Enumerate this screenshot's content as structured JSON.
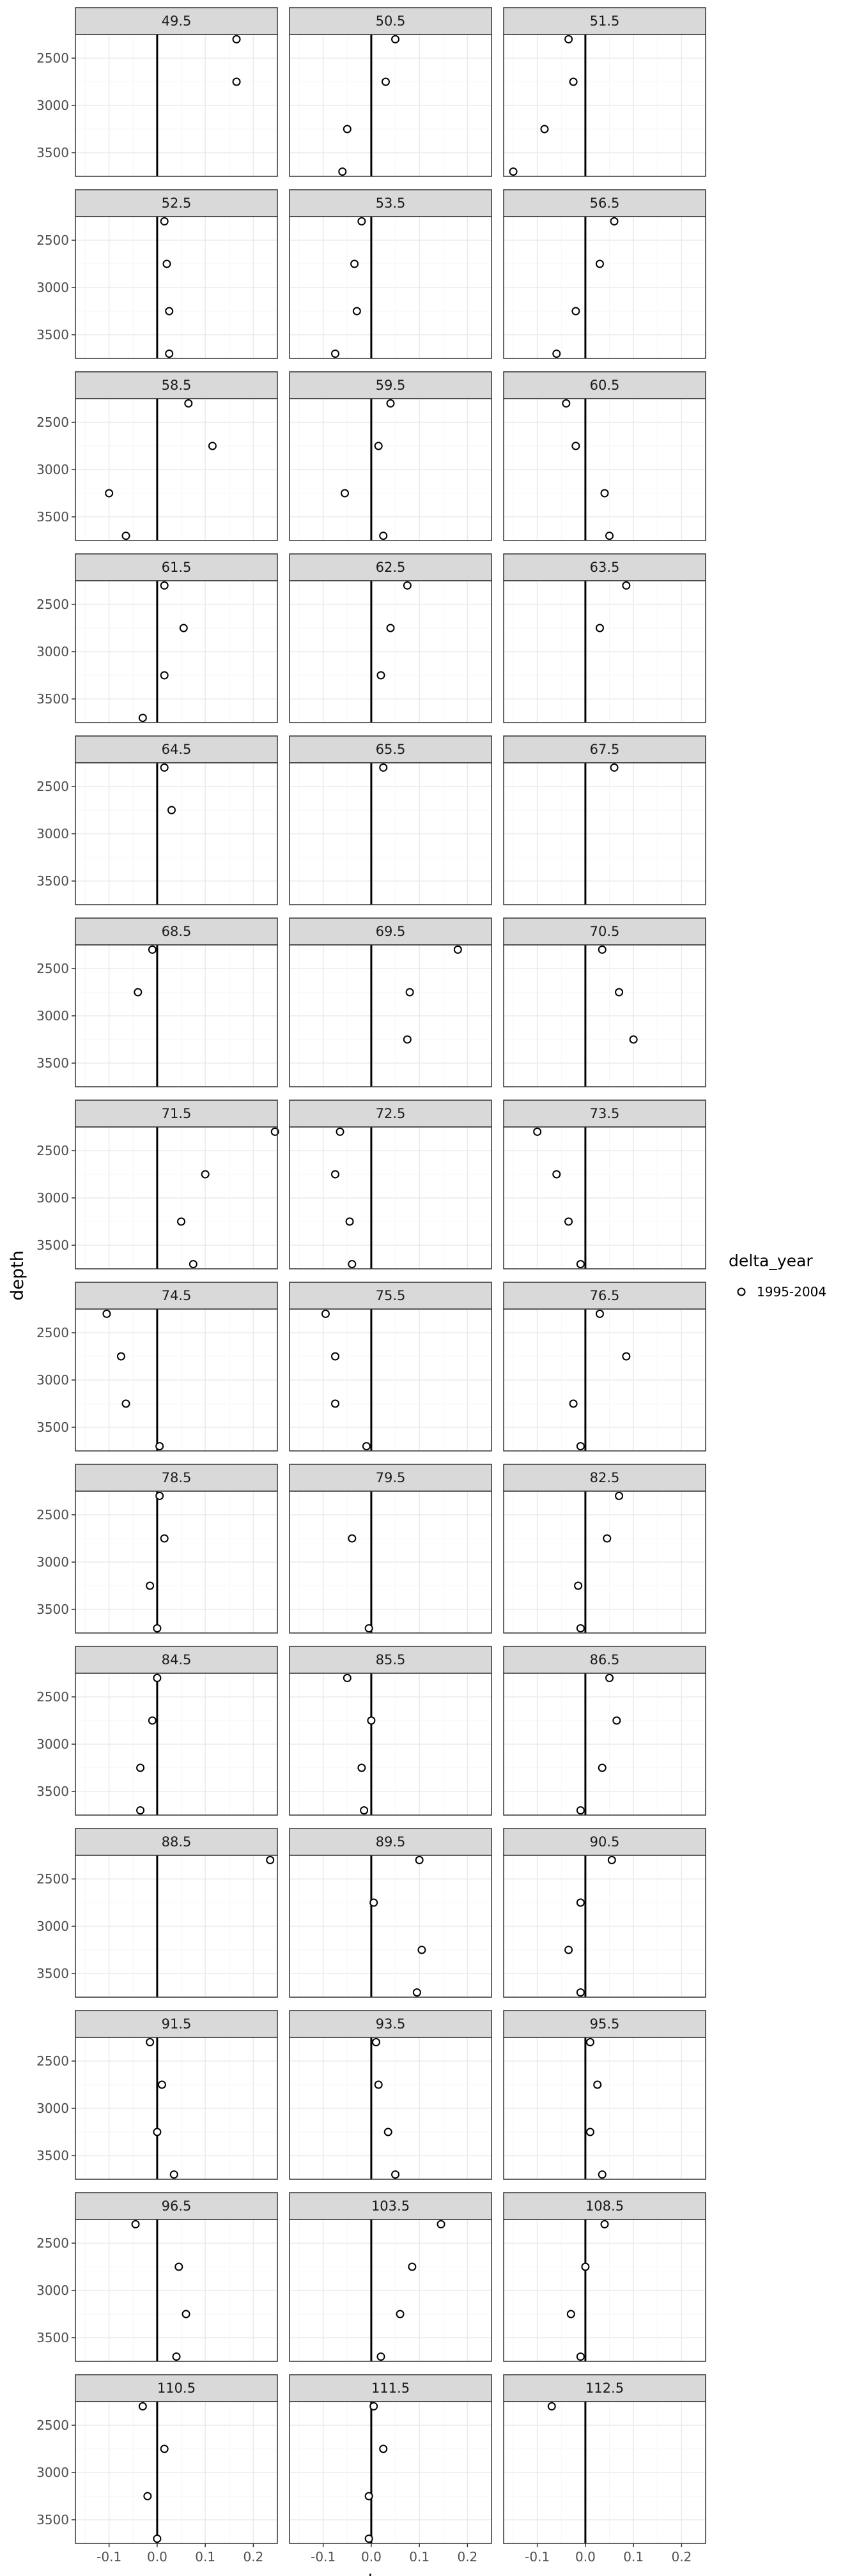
{
  "chart_data": {
    "type": "scatter",
    "xlabel": "temp",
    "ylabel": "depth",
    "xlim": [
      -0.17,
      0.25
    ],
    "ylim": [
      2250,
      3750
    ],
    "y_reversed": true,
    "x_ticks": [
      -0.1,
      0.0,
      0.1,
      0.2
    ],
    "x_tick_labels": [
      "-0.1",
      "0.0",
      "0.1",
      "0.2"
    ],
    "y_ticks": [
      2500,
      3000,
      3500
    ],
    "y_tick_labels": [
      "2500",
      "3000",
      "3500"
    ],
    "grid": true,
    "zero_reference_line": 0,
    "legend": {
      "title": "delta_year",
      "entries": [
        "1995-2004"
      ],
      "position": "right"
    },
    "facets": [
      {
        "label": "49.5",
        "points": [
          [
            0.165,
            2300
          ],
          [
            0.165,
            2750
          ]
        ]
      },
      {
        "label": "50.5",
        "points": [
          [
            0.05,
            2300
          ],
          [
            0.03,
            2750
          ],
          [
            -0.05,
            3250
          ],
          [
            -0.06,
            3700
          ]
        ]
      },
      {
        "label": "51.5",
        "points": [
          [
            -0.035,
            2300
          ],
          [
            -0.025,
            2750
          ],
          [
            -0.085,
            3250
          ],
          [
            -0.15,
            3700
          ]
        ]
      },
      {
        "label": "52.5",
        "points": [
          [
            0.015,
            2300
          ],
          [
            0.02,
            2750
          ],
          [
            0.025,
            3250
          ],
          [
            0.025,
            3700
          ]
        ]
      },
      {
        "label": "53.5",
        "points": [
          [
            -0.02,
            2300
          ],
          [
            -0.035,
            2750
          ],
          [
            -0.03,
            3250
          ],
          [
            -0.075,
            3700
          ]
        ]
      },
      {
        "label": "56.5",
        "points": [
          [
            0.06,
            2300
          ],
          [
            0.03,
            2750
          ],
          [
            -0.02,
            3250
          ],
          [
            -0.06,
            3700
          ]
        ]
      },
      {
        "label": "58.5",
        "points": [
          [
            0.065,
            2300
          ],
          [
            0.115,
            2750
          ],
          [
            -0.1,
            3250
          ],
          [
            -0.065,
            3700
          ]
        ]
      },
      {
        "label": "59.5",
        "points": [
          [
            0.04,
            2300
          ],
          [
            0.015,
            2750
          ],
          [
            -0.055,
            3250
          ],
          [
            0.025,
            3700
          ]
        ]
      },
      {
        "label": "60.5",
        "points": [
          [
            -0.04,
            2300
          ],
          [
            -0.02,
            2750
          ],
          [
            0.04,
            3250
          ],
          [
            0.05,
            3700
          ]
        ]
      },
      {
        "label": "61.5",
        "points": [
          [
            0.015,
            2300
          ],
          [
            0.055,
            2750
          ],
          [
            0.015,
            3250
          ],
          [
            -0.03,
            3700
          ]
        ]
      },
      {
        "label": "62.5",
        "points": [
          [
            0.075,
            2300
          ],
          [
            0.04,
            2750
          ],
          [
            0.02,
            3250
          ]
        ]
      },
      {
        "label": "63.5",
        "points": [
          [
            0.085,
            2300
          ],
          [
            0.03,
            2750
          ]
        ]
      },
      {
        "label": "64.5",
        "points": [
          [
            0.015,
            2300
          ],
          [
            0.03,
            2750
          ]
        ]
      },
      {
        "label": "65.5",
        "points": [
          [
            0.025,
            2300
          ]
        ]
      },
      {
        "label": "67.5",
        "points": [
          [
            0.06,
            2300
          ]
        ]
      },
      {
        "label": "68.5",
        "points": [
          [
            -0.01,
            2300
          ],
          [
            -0.04,
            2750
          ]
        ]
      },
      {
        "label": "69.5",
        "points": [
          [
            0.18,
            2300
          ],
          [
            0.08,
            2750
          ],
          [
            0.075,
            3250
          ]
        ]
      },
      {
        "label": "70.5",
        "points": [
          [
            0.035,
            2300
          ],
          [
            0.07,
            2750
          ],
          [
            0.1,
            3250
          ]
        ]
      },
      {
        "label": "71.5",
        "points": [
          [
            0.245,
            2300
          ],
          [
            0.1,
            2750
          ],
          [
            0.05,
            3250
          ],
          [
            0.075,
            3700
          ]
        ]
      },
      {
        "label": "72.5",
        "points": [
          [
            -0.065,
            2300
          ],
          [
            -0.075,
            2750
          ],
          [
            -0.045,
            3250
          ],
          [
            -0.04,
            3700
          ]
        ]
      },
      {
        "label": "73.5",
        "points": [
          [
            -0.1,
            2300
          ],
          [
            -0.06,
            2750
          ],
          [
            -0.035,
            3250
          ],
          [
            -0.01,
            3700
          ]
        ]
      },
      {
        "label": "74.5",
        "points": [
          [
            -0.105,
            2300
          ],
          [
            -0.075,
            2750
          ],
          [
            -0.065,
            3250
          ],
          [
            0.005,
            3700
          ]
        ]
      },
      {
        "label": "75.5",
        "points": [
          [
            -0.095,
            2300
          ],
          [
            -0.075,
            2750
          ],
          [
            -0.075,
            3250
          ],
          [
            -0.01,
            3700
          ]
        ]
      },
      {
        "label": "76.5",
        "points": [
          [
            0.03,
            2300
          ],
          [
            0.085,
            2750
          ],
          [
            -0.025,
            3250
          ],
          [
            -0.01,
            3700
          ]
        ]
      },
      {
        "label": "78.5",
        "points": [
          [
            0.005,
            2300
          ],
          [
            0.015,
            2750
          ],
          [
            -0.015,
            3250
          ],
          [
            0.0,
            3700
          ]
        ]
      },
      {
        "label": "79.5",
        "points": [
          [
            -0.04,
            2750
          ],
          [
            -0.005,
            3700
          ]
        ]
      },
      {
        "label": "82.5",
        "points": [
          [
            0.07,
            2300
          ],
          [
            0.045,
            2750
          ],
          [
            -0.015,
            3250
          ],
          [
            -0.01,
            3700
          ]
        ]
      },
      {
        "label": "84.5",
        "points": [
          [
            0.0,
            2300
          ],
          [
            -0.01,
            2750
          ],
          [
            -0.035,
            3250
          ],
          [
            -0.035,
            3700
          ]
        ]
      },
      {
        "label": "85.5",
        "points": [
          [
            -0.05,
            2300
          ],
          [
            0.0,
            2750
          ],
          [
            -0.02,
            3250
          ],
          [
            -0.015,
            3700
          ]
        ]
      },
      {
        "label": "86.5",
        "points": [
          [
            0.05,
            2300
          ],
          [
            0.065,
            2750
          ],
          [
            0.035,
            3250
          ],
          [
            -0.01,
            3700
          ]
        ]
      },
      {
        "label": "88.5",
        "points": [
          [
            0.235,
            2300
          ]
        ]
      },
      {
        "label": "89.5",
        "points": [
          [
            0.1,
            2300
          ],
          [
            0.005,
            2750
          ],
          [
            0.105,
            3250
          ],
          [
            0.095,
            3700
          ]
        ]
      },
      {
        "label": "90.5",
        "points": [
          [
            0.055,
            2300
          ],
          [
            -0.01,
            2750
          ],
          [
            -0.035,
            3250
          ],
          [
            -0.01,
            3700
          ]
        ]
      },
      {
        "label": "91.5",
        "points": [
          [
            -0.015,
            2300
          ],
          [
            0.01,
            2750
          ],
          [
            0.0,
            3250
          ],
          [
            0.035,
            3700
          ]
        ]
      },
      {
        "label": "93.5",
        "points": [
          [
            0.01,
            2300
          ],
          [
            0.015,
            2750
          ],
          [
            0.035,
            3250
          ],
          [
            0.05,
            3700
          ]
        ]
      },
      {
        "label": "95.5",
        "points": [
          [
            0.01,
            2300
          ],
          [
            0.025,
            2750
          ],
          [
            0.01,
            3250
          ],
          [
            0.035,
            3700
          ]
        ]
      },
      {
        "label": "96.5",
        "points": [
          [
            -0.045,
            2300
          ],
          [
            0.045,
            2750
          ],
          [
            0.06,
            3250
          ],
          [
            0.04,
            3700
          ]
        ]
      },
      {
        "label": "103.5",
        "points": [
          [
            0.145,
            2300
          ],
          [
            0.085,
            2750
          ],
          [
            0.06,
            3250
          ],
          [
            0.02,
            3700
          ]
        ]
      },
      {
        "label": "108.5",
        "points": [
          [
            0.04,
            2300
          ],
          [
            0.0,
            2750
          ],
          [
            -0.03,
            3250
          ],
          [
            -0.01,
            3700
          ]
        ]
      },
      {
        "label": "110.5",
        "points": [
          [
            -0.03,
            2300
          ],
          [
            0.015,
            2750
          ],
          [
            -0.02,
            3250
          ],
          [
            0.0,
            3700
          ]
        ]
      },
      {
        "label": "111.5",
        "points": [
          [
            0.005,
            2300
          ],
          [
            0.025,
            2750
          ],
          [
            -0.005,
            3250
          ],
          [
            -0.005,
            3700
          ]
        ]
      },
      {
        "label": "112.5",
        "points": [
          [
            -0.07,
            2300
          ]
        ]
      }
    ]
  }
}
